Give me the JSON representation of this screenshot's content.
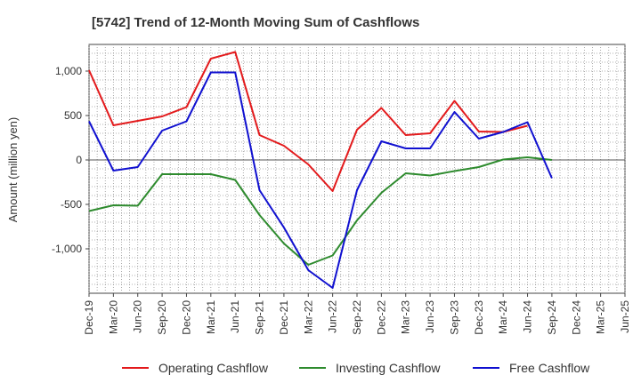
{
  "chart_data": {
    "type": "line",
    "title": "[5742]  Trend of 12-Month Moving Sum of Cashflows",
    "ylabel": "Amount (million yen)",
    "xlabel": "",
    "ylim": [
      -1500,
      1300
    ],
    "yticks": [
      1000,
      500,
      0,
      -500,
      -1000
    ],
    "ytick_labels": [
      "1,000",
      "500",
      "0",
      "-500",
      "-1,000"
    ],
    "categories": [
      "Dec-19",
      "Mar-20",
      "Jun-20",
      "Sep-20",
      "Dec-20",
      "Mar-21",
      "Jun-21",
      "Sep-21",
      "Dec-21",
      "Mar-22",
      "Jun-22",
      "Sep-22",
      "Dec-22",
      "Mar-23",
      "Jun-23",
      "Sep-23",
      "Dec-23",
      "Mar-24",
      "Jun-24",
      "Sep-24",
      "Dec-24",
      "Mar-25"
    ],
    "extra_label": "Jun-25",
    "grid": true,
    "legend_position": "bottom",
    "series": [
      {
        "name": "Operating Cashflow",
        "color": "#e31a1c",
        "values": [
          1010,
          390,
          440,
          490,
          595,
          1140,
          1215,
          280,
          160,
          -50,
          -350,
          340,
          585,
          280,
          300,
          665,
          320,
          315,
          385,
          null,
          null,
          null
        ]
      },
      {
        "name": "Investing Cashflow",
        "color": "#2e8b2e",
        "values": [
          -575,
          -510,
          -515,
          -160,
          -160,
          -160,
          -225,
          -620,
          -940,
          -1180,
          -1075,
          -680,
          -370,
          -150,
          -175,
          -125,
          -80,
          5,
          30,
          0,
          null,
          null
        ]
      },
      {
        "name": "Free Cashflow",
        "color": "#1010d0",
        "values": [
          435,
          -120,
          -80,
          330,
          435,
          985,
          985,
          -340,
          -760,
          -1240,
          -1440,
          -340,
          210,
          130,
          130,
          540,
          240,
          315,
          425,
          -205,
          null,
          null
        ]
      }
    ]
  }
}
